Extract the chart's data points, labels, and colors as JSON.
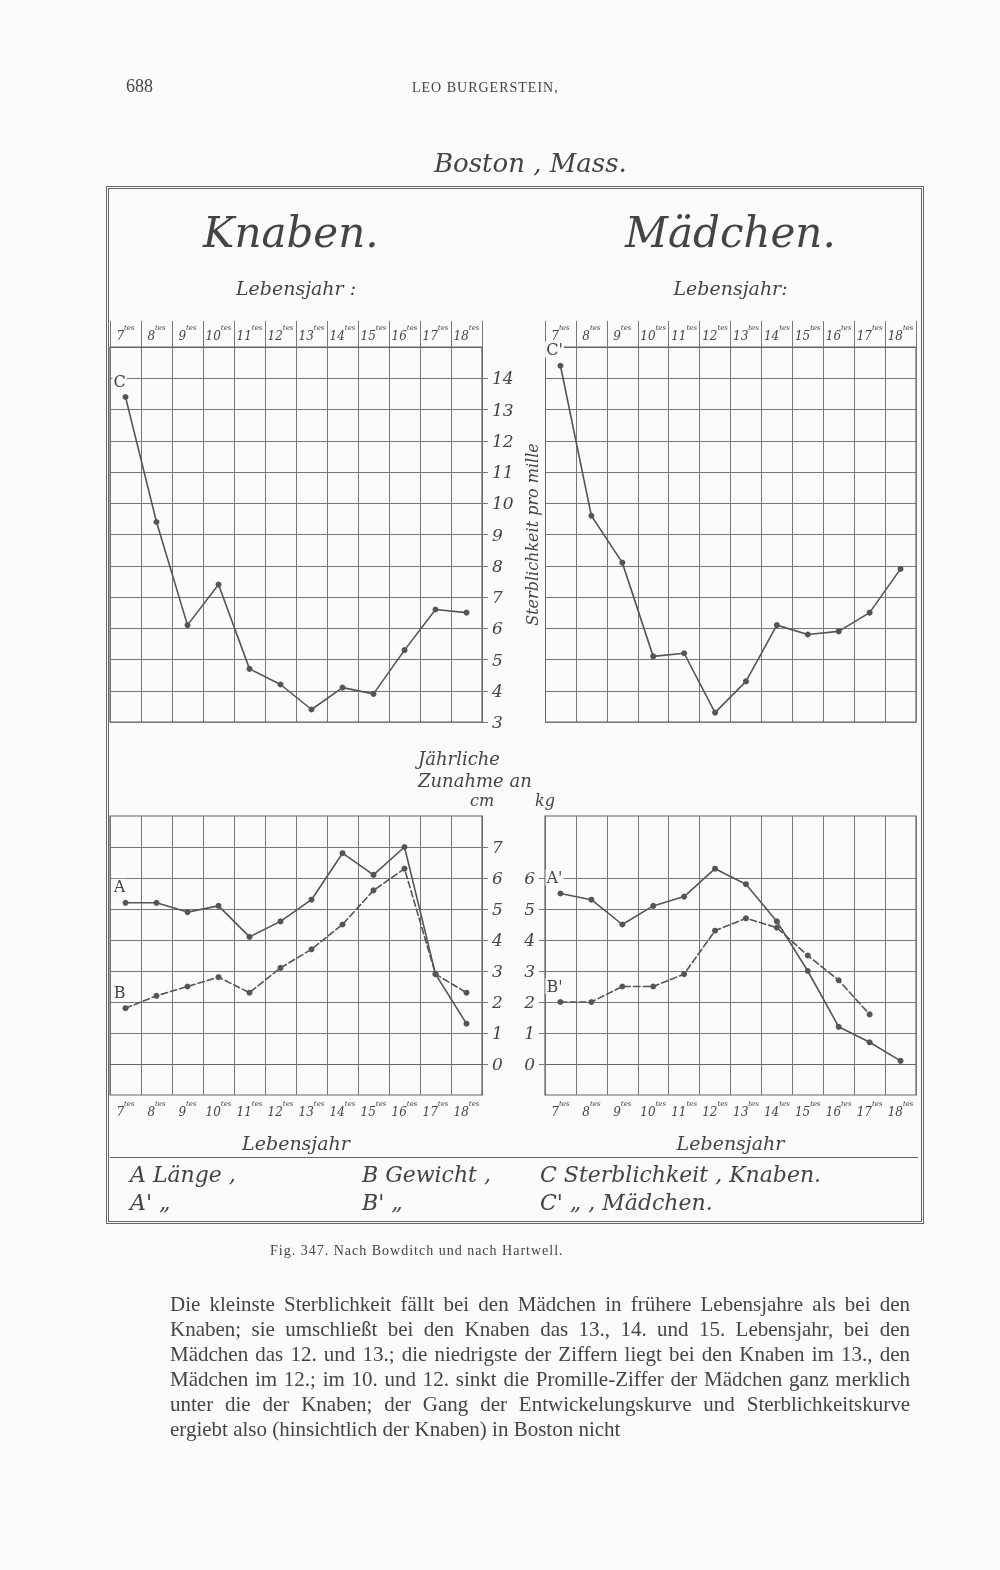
{
  "chart_data": [
    {
      "type": "line",
      "title": "Knaben.",
      "xlabel": "Lebensjahr :",
      "ylabel": "Sterblichkeit pro mille",
      "categories": [
        "7$^{tes}$",
        "8$^{tes}$",
        "9$^{tes}$",
        "10$^{tes}$",
        "11$^{tes}$",
        "12$^{tes}$",
        "13$^{tes}$",
        "14$^{tes}$",
        "15$^{tes}$",
        "16$^{tes}$",
        "17$^{tes}$",
        "18$^{tes}$"
      ],
      "series": [
        {
          "name": "C",
          "color": "#555555",
          "line_style": "solid",
          "values": [
            13.4,
            9.4,
            6.1,
            7.4,
            4.7,
            4.2,
            3.4,
            4.1,
            3.9,
            5.3,
            6.6,
            6.5
          ]
        }
      ],
      "ylim": [
        3,
        15
      ],
      "yticks": [
        3,
        4,
        5,
        6,
        7,
        8,
        9,
        10,
        11,
        12,
        13,
        14
      ],
      "grid": true,
      "marker": "circle",
      "annotations": [
        "688",
        "LEO BURGERSTEIN,",
        "Boston , Mass."
      ]
    },
    {
      "type": "line",
      "title": "Mädchen.",
      "xlabel": "Lebensjahr:",
      "categories": [
        "7$^{tes}$",
        "8$^{tes}$",
        "9$^{tes}$",
        "10$^{tes}$",
        "11$^{tes}$",
        "12$^{tes}$",
        "13$^{tes}$",
        "14$^{tes}$",
        "15$^{tes}$",
        "16$^{tes}$",
        "17$^{tes}$",
        "18$^{tes}$"
      ],
      "series": [
        {
          "name": "C'",
          "color": "#555555",
          "line_style": "solid",
          "values": [
            14.4,
            9.6,
            8.1,
            5.1,
            5.2,
            3.3,
            4.3,
            6.1,
            5.8,
            5.9,
            6.5,
            7.9
          ]
        }
      ],
      "ylim": [
        3,
        15
      ],
      "yticks": [
        3,
        4,
        5,
        6,
        7,
        8,
        9,
        10,
        11,
        12,
        13,
        14
      ],
      "tick_labels": "x",
      "grid": true,
      "marker": "circle"
    },
    {
      "type": "line",
      "title": "Jährliche Zunahme an",
      "xlabel": "Lebensjahr",
      "ylabel": "cm",
      "categories": [
        "7$^{tes}$",
        "8$^{tes}$",
        "9$^{tes}$",
        "10$^{tes}$",
        "11$^{tes}$",
        "12$^{tes}$",
        "13$^{tes}$",
        "14$^{tes}$",
        "15$^{tes}$",
        "16$^{tes}$",
        "17$^{tes}$",
        "18$^{tes}$"
      ],
      "series": [
        {
          "name": "A",
          "color": "#555555",
          "line_style": "solid",
          "values": [
            5.2,
            5.2,
            4.9,
            5.1,
            4.1,
            4.6,
            5.3,
            6.8,
            6.1,
            7.0,
            2.9,
            1.3
          ]
        },
        {
          "name": "B",
          "color": "#555555",
          "line_style": "dashed",
          "values": [
            1.8,
            2.2,
            2.5,
            2.8,
            2.3,
            3.1,
            3.7,
            4.5,
            5.6,
            6.3,
            2.9,
            2.3
          ]
        }
      ],
      "ylim": [
        -1,
        8
      ],
      "yticks": [
        0,
        1,
        2,
        3,
        4,
        5,
        6,
        7
      ],
      "grid": true,
      "marker": "circle"
    },
    {
      "type": "line",
      "xlabel": "Lebensjahr",
      "ylabel": "kg",
      "categories": [
        "7$^{tes}$",
        "8$^{tes}$",
        "9$^{tes}$",
        "10$^{tes}$",
        "11$^{tes}$",
        "12$^{tes}$",
        "13$^{tes}$",
        "14$^{tes}$",
        "15$^{tes}$",
        "16$^{tes}$",
        "17$^{tes}$",
        "18$^{tes}$"
      ],
      "series": [
        {
          "name": "A'",
          "color": "#555555",
          "line_style": "solid",
          "values": [
            5.5,
            5.3,
            4.5,
            5.1,
            5.4,
            6.3,
            5.8,
            4.6,
            3.0,
            1.2,
            0.7,
            0.1
          ]
        },
        {
          "name": "B'",
          "color": "#555555",
          "line_style": "dashed",
          "values": [
            2.0,
            2.0,
            2.5,
            2.5,
            2.9,
            4.3,
            4.7,
            4.4,
            3.5,
            2.7,
            1.6,
            null
          ]
        }
      ],
      "ylim": [
        -1,
        8
      ],
      "yticks": [
        0,
        1,
        2,
        3,
        4,
        5,
        6
      ],
      "grid": true,
      "marker": "circle",
      "annotations": [
        "A Länge ,",
        "B Gewicht ,",
        "C Sterblichkeit , Knaben.",
        "A'  „",
        "B'  „",
        "C'  „  , Mädchen.",
        "Fig. 347.  Nach Bowditch und nach Hartwell.",
        "Die kleinste Sterblichkeit fällt bei den Mädchen in frühere Lebensjahre als bei den Knaben; sie umschließt bei den Knaben das 13., 14. und 15. Lebensjahr, bei den Mädchen das 12. und 13.; die niedrigste der Ziffern liegt bei den Knaben im 13., den Mädchen im 12.; im 10. und 12. sinkt die Promille-Ziffer der Mädchen ganz merklich unter die der Knaben; der Gang der Entwickelungskurve und Sterblichkeitskurve ergiebt also (hinsichtlich der Knaben) in Boston nicht"
      ]
    }
  ]
}
